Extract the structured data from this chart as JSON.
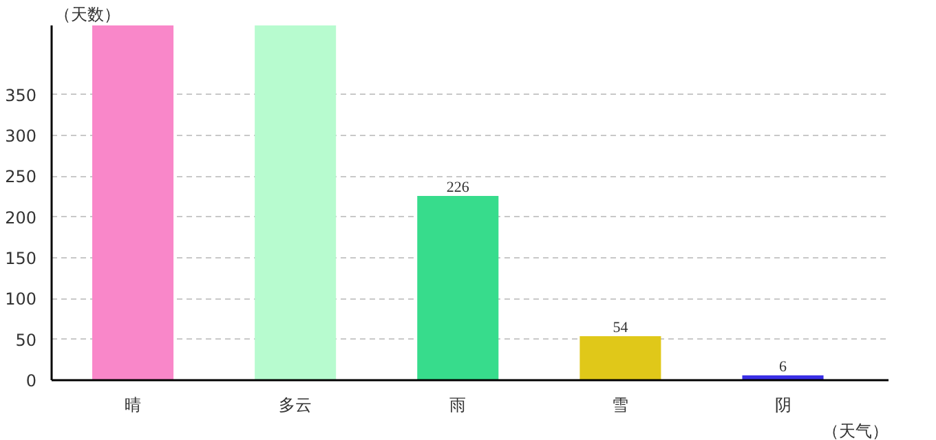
{
  "chart_data": {
    "type": "bar",
    "categories": [
      "晴",
      "多云",
      "雨",
      "雪",
      "阴"
    ],
    "values": [
      435,
      435,
      226,
      54,
      6
    ],
    "colors": [
      "#f987c9",
      "#b7fbcf",
      "#37dc8c",
      "#e0c819",
      "#3a2fe6"
    ],
    "value_labels": [
      null,
      null,
      "226",
      "54",
      "6"
    ],
    "xlabel": "（天气）",
    "ylabel": "（天数）",
    "ylim": [
      0,
      435
    ],
    "yticks": [
      0,
      50,
      100,
      150,
      200,
      250,
      300,
      350
    ],
    "grid": "y"
  }
}
